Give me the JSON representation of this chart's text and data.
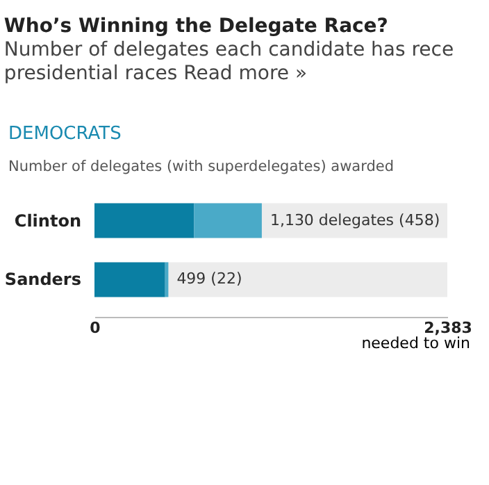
{
  "chart_data": {
    "type": "bar",
    "orientation": "horizontal",
    "stacked": true,
    "title": "Who’s Winning the Delegate Race?",
    "subtitle": "Number of delegates each candidate has rece\npresidential races Read more »",
    "annotations": [
      "DEMOCRATS",
      "Number of delegates (with superdelegates) awarded"
    ],
    "categories": [
      "Clinton",
      "Sanders"
    ],
    "series": [
      {
        "color": "#0a7fa3",
        "values": [
          672,
          477
        ]
      },
      {
        "color": "#4aaac8",
        "values": [
          458,
          22
        ]
      }
    ],
    "bands": [
      {
        "axis": "x",
        "from": 0,
        "to": 2383,
        "color": "#ececec"
      }
    ],
    "totals": [
      "1,130 delegates (458)",
      "499 (22)"
    ],
    "xlim": [
      0,
      2383
    ],
    "xticks": [
      0,
      {
        "value": 2383,
        "label": "2,383"
      }
    ],
    "xlabel": "needed to win",
    "grid": false
  }
}
